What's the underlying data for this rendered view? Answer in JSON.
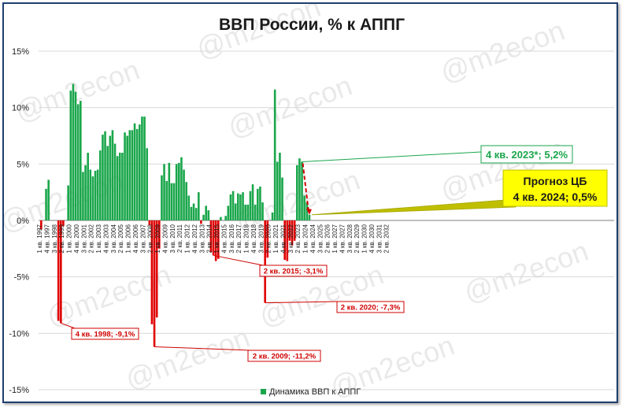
{
  "chart_data": {
    "type": "bar",
    "title": "ВВП России, % к АППГ",
    "legend": {
      "label": "Динамика ВВП к АППГ",
      "position": "bottom"
    },
    "ylim": [
      -15,
      15
    ],
    "y_ticks": [
      "15%",
      "10%",
      "5%",
      "0%",
      "-5%",
      "-10%",
      "-15%"
    ],
    "grid": true,
    "colors": {
      "positive": "#1aa64b",
      "negative": "#e00000",
      "annotation_red": "#d00000",
      "annotation_green": "#1aa64b",
      "forecast_box": "#ffff00"
    },
    "x_labels": [
      "1 кв. 1997",
      "4 кв. 1997",
      "3 кв. 1998",
      "2 кв. 1999",
      "1 кв. 2000",
      "4 кв. 2000",
      "3 кв. 2001",
      "2 кв. 2002",
      "1 кв. 2003",
      "4 кв. 2003",
      "3 кв. 2004",
      "2 кв. 2005",
      "1 кв. 2006",
      "4 кв. 2006",
      "3 кв. 2007",
      "2 кв. 2008",
      "1 кв. 2009",
      "4 кв. 2009",
      "3 кв. 2010",
      "2 кв. 2011",
      "1 кв. 2012",
      "4 кв. 2012",
      "3 кв. 2013",
      "2 кв. 2014",
      "1 кв. 2015",
      "4 кв. 2015",
      "3 кв. 2016",
      "2 кв. 2017",
      "1 кв. 2018",
      "4 кв. 2018",
      "3 кв. 2019",
      "2 кв. 2020",
      "1 кв. 2021",
      "4 кв. 2021",
      "3 кв. 2022",
      "2 кв. 2023",
      "1 кв. 2024",
      "4 кв. 2024",
      "3 кв. 2025",
      "2 кв. 2026",
      "1 кв. 2027",
      "4 кв. 2027",
      "3 кв. 2028",
      "2 кв. 2029",
      "1 кв. 2030",
      "4 кв. 2030",
      "3 кв. 2031",
      "2 кв. 2032"
    ],
    "series": [
      {
        "name": "Динамика ВВП к АППГ",
        "values": [
          -0.8,
          0.0,
          2.8,
          3.6,
          0.0,
          0.0,
          0.0,
          -8.9,
          -9.1,
          -0.5,
          0.0,
          3.1,
          11.5,
          12.1,
          11.4,
          10.3,
          10.6,
          4.3,
          4.9,
          6.0,
          4.5,
          3.9,
          4.4,
          4.5,
          6.2,
          7.6,
          7.9,
          6.6,
          7.5,
          8.0,
          6.8,
          5.7,
          6.0,
          6.0,
          7.8,
          7.5,
          8.0,
          8.0,
          8.6,
          8.1,
          8.5,
          9.2,
          9.2,
          6.4,
          -0.4,
          -9.2,
          -11.2,
          -8.6,
          -2.5,
          4.0,
          5.0,
          3.5,
          5.1,
          3.3,
          3.3,
          5.0,
          5.1,
          5.6,
          4.5,
          3.4,
          2.2,
          1.2,
          1.5,
          1.1,
          2.5,
          -0.3,
          0.5,
          1.3,
          0.9,
          -2.8,
          -3.1,
          -3.6,
          -3.4,
          0.3,
          0.0,
          0.4,
          1.3,
          2.3,
          2.6,
          1.5,
          2.4,
          2.3,
          2.5,
          1.4,
          1.4,
          2.6,
          3.2,
          1.4,
          2.8,
          3.0,
          1.6,
          -7.3,
          -3.3,
          0.0,
          0.7,
          11.6,
          5.2,
          6.0,
          3.8,
          -3.5,
          -3.6,
          -1.8,
          -2.2,
          -1.8,
          4.9,
          5.5,
          5.2,
          2.2,
          1.6,
          0.5
        ]
      }
    ],
    "annotations": [
      {
        "text": "4 кв. 1998; -9,1%",
        "style": "red"
      },
      {
        "text": "2 кв. 2009; -11,2%",
        "style": "red"
      },
      {
        "text": "2 кв. 2015; -3,1%",
        "style": "red"
      },
      {
        "text": "2 кв. 2020; -7,3%",
        "style": "red"
      },
      {
        "text": "4 кв. 2023*; 5,2%",
        "style": "green"
      },
      {
        "text": "Прогноз ЦБ",
        "style": "forecast"
      },
      {
        "text": "4 кв. 2024; 0,5%",
        "style": "forecast"
      }
    ]
  },
  "watermark": "@m2econ"
}
